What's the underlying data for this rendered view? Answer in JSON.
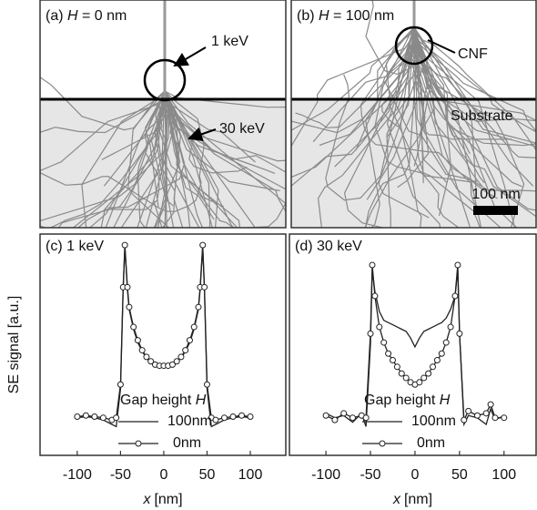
{
  "simulation_panels": [
    {
      "label": "(a) ",
      "var": "H",
      "value_text": " = 0 nm",
      "beam_label": "1 keV",
      "spread_label": "30 keV"
    },
    {
      "label": "(b) ",
      "var": "H",
      "value_text": " = 100 nm",
      "tip_label": "CNF",
      "substrate_label": "Substrate",
      "scale_label": "100 nm"
    }
  ],
  "chart_data": [
    {
      "type": "line",
      "title": "(c) 1 keV",
      "y_label": "SE signal [a.u.]",
      "x_label_var": "x",
      "x_label_unit": "[nm]",
      "legend_title": "Gap height ",
      "legend_title_var": "H",
      "x": [
        -100,
        -90,
        -80,
        -70,
        -60,
        -55,
        -50,
        -47,
        -45,
        -42,
        -40,
        -35,
        -30,
        -25,
        -20,
        -15,
        -10,
        -5,
        0,
        5,
        10,
        15,
        20,
        25,
        30,
        35,
        40,
        42,
        45,
        47,
        50,
        55,
        60,
        70,
        80,
        90,
        100
      ],
      "series": [
        {
          "name": "100nm",
          "color": "#222222",
          "marker": "none",
          "values": [
            17,
            17.5,
            17,
            16,
            14,
            13,
            30,
            75,
            94,
            75,
            66,
            57,
            51,
            47,
            44,
            42,
            40.5,
            40,
            40,
            40,
            40.5,
            42,
            44,
            47,
            51,
            57,
            66,
            75,
            94,
            75,
            30,
            13,
            14,
            16,
            17,
            17.5,
            17
          ]
        },
        {
          "name": "0nm",
          "color": "#222222",
          "marker": "circle",
          "values": [
            17.5,
            18,
            17.5,
            17,
            16,
            17,
            32,
            76,
            95,
            76,
            67,
            58,
            52,
            47.5,
            44.5,
            42.5,
            41,
            40.5,
            40.5,
            40.5,
            41,
            42.5,
            44.5,
            47.5,
            52,
            58,
            67,
            76,
            95,
            76,
            32,
            17,
            16,
            17,
            17.5,
            18,
            17.5
          ]
        }
      ],
      "xlim": [
        -143,
        141
      ],
      "ylim": [
        0,
        100
      ],
      "xticks": [
        -100,
        -50,
        0,
        50,
        100
      ]
    },
    {
      "type": "line",
      "title": "(d) 30 keV",
      "x_label_var": "x",
      "x_label_unit": "[nm]",
      "legend_title": "Gap height ",
      "legend_title_var": "H",
      "x": [
        -100,
        -90,
        -80,
        -70,
        -60,
        -55,
        -50,
        -48,
        -45,
        -40,
        -35,
        -30,
        -25,
        -20,
        -15,
        -10,
        -5,
        0,
        5,
        10,
        15,
        20,
        25,
        30,
        35,
        40,
        45,
        48,
        50,
        55,
        60,
        70,
        80,
        85,
        90,
        100
      ],
      "series": [
        {
          "name": "100nm",
          "color": "#222222",
          "marker": "none",
          "values": [
            19,
            17,
            18,
            15,
            19,
            13,
            50,
            84,
            74,
            65,
            61,
            60,
            59,
            58,
            57,
            56,
            53,
            49,
            53,
            56,
            57,
            58,
            59,
            60,
            62,
            66,
            72,
            84,
            55,
            14,
            18,
            17,
            14,
            21,
            16,
            18
          ]
        },
        {
          "name": "0nm",
          "color": "#222222",
          "marker": "circle",
          "values": [
            18,
            16,
            19,
            17,
            18,
            17,
            55,
            86,
            72,
            58,
            51,
            46,
            43,
            40,
            37,
            35,
            33,
            32,
            33,
            35,
            37,
            40,
            43,
            46,
            51,
            58,
            72,
            86,
            55,
            16,
            20,
            18,
            19,
            23,
            17,
            17
          ]
        }
      ],
      "xlim": [
        -141,
        136
      ],
      "ylim": [
        0,
        100
      ],
      "xticks": [
        -100,
        -50,
        0,
        50,
        100
      ]
    }
  ]
}
